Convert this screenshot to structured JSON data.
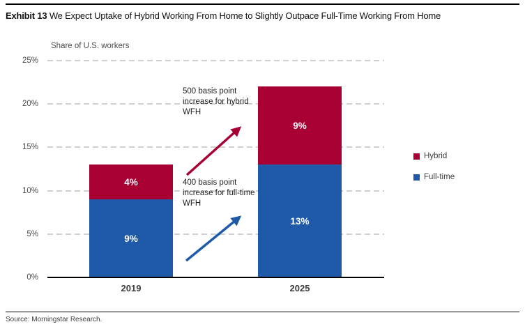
{
  "header": {
    "exhibit_label": "Exhibit 13",
    "title": " We Expect Uptake of Hybrid Working From Home to Slightly Outpace Full-Time Working From Home"
  },
  "chart_data": {
    "type": "bar",
    "stacked": true,
    "subtitle": "Share of U.S. workers",
    "categories": [
      "2019",
      "2025"
    ],
    "series": [
      {
        "name": "Full-time",
        "color": "#1F5AA8",
        "values": [
          9,
          13
        ],
        "labels": [
          "9%",
          "13%"
        ]
      },
      {
        "name": "Hybrid",
        "color": "#A80033",
        "values": [
          4,
          9
        ],
        "labels": [
          "4%",
          "9%"
        ]
      }
    ],
    "ylim": [
      0,
      25
    ],
    "yticks": [
      0,
      5,
      10,
      15,
      20,
      25
    ],
    "ytick_labels": [
      "0%",
      "5%",
      "10%",
      "15%",
      "20%",
      "25%"
    ],
    "grid": "dashed-horizontal",
    "legend_position": "right",
    "legend_order": [
      "Hybrid",
      "Full-time"
    ],
    "annotations": [
      {
        "text": "500 basis point increase for hybrid WFH",
        "color": "#A80033"
      },
      {
        "text": "400 basis point increase for full-time WFH",
        "color": "#1F5AA8"
      }
    ]
  },
  "source": "Source: Morningstar Research."
}
